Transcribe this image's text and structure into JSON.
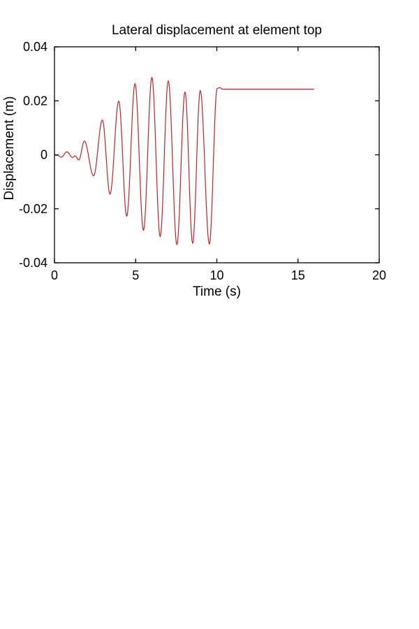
{
  "figure": {
    "background": "#ffffff"
  },
  "chart_data": {
    "type": "line",
    "title": "Lateral displacement at element top",
    "xlabel": "Time (s)",
    "ylabel": "Displacement (m)",
    "xlim": [
      0,
      20
    ],
    "ylim": [
      -0.04,
      0.04
    ],
    "xticks": [
      0,
      5,
      10,
      15,
      20
    ],
    "xtick_labels": [
      "0",
      "5",
      "10",
      "15",
      "20"
    ],
    "yticks": [
      -0.04,
      -0.02,
      0,
      0.02,
      0.04
    ],
    "ytick_labels": [
      "-0.04",
      "-0.02",
      "0",
      "0.02",
      "0.04"
    ],
    "grid": false,
    "legend": null,
    "box": true,
    "axis_color": "#000000",
    "line_color": "#C32127",
    "series": [
      {
        "name": "lateral-displacement",
        "interpolation": "cosine",
        "keypoints": [
          [
            0.0,
            -0.0002
          ],
          [
            0.22,
            -0.0002
          ],
          [
            0.42,
            -0.0009
          ],
          [
            0.76,
            0.0011
          ],
          [
            1.12,
            -0.001
          ],
          [
            1.28,
            -0.0004
          ],
          [
            1.5,
            -0.0019
          ],
          [
            1.84,
            0.0051
          ],
          [
            2.41,
            -0.0078
          ],
          [
            2.95,
            0.0129
          ],
          [
            3.42,
            -0.0146
          ],
          [
            3.96,
            0.0199
          ],
          [
            4.45,
            -0.0228
          ],
          [
            4.96,
            0.0264
          ],
          [
            5.48,
            -0.028
          ],
          [
            6.0,
            0.0287
          ],
          [
            6.51,
            -0.0303
          ],
          [
            7.01,
            0.0274
          ],
          [
            7.54,
            -0.0333
          ],
          [
            8.04,
            0.0233
          ],
          [
            8.51,
            -0.0328
          ],
          [
            8.98,
            0.0238
          ],
          [
            9.54,
            -0.0331
          ],
          [
            10.02,
            0.0246
          ],
          [
            10.18,
            0.0249
          ],
          [
            10.35,
            0.0243
          ],
          [
            16.0,
            0.0243
          ]
        ]
      }
    ]
  }
}
